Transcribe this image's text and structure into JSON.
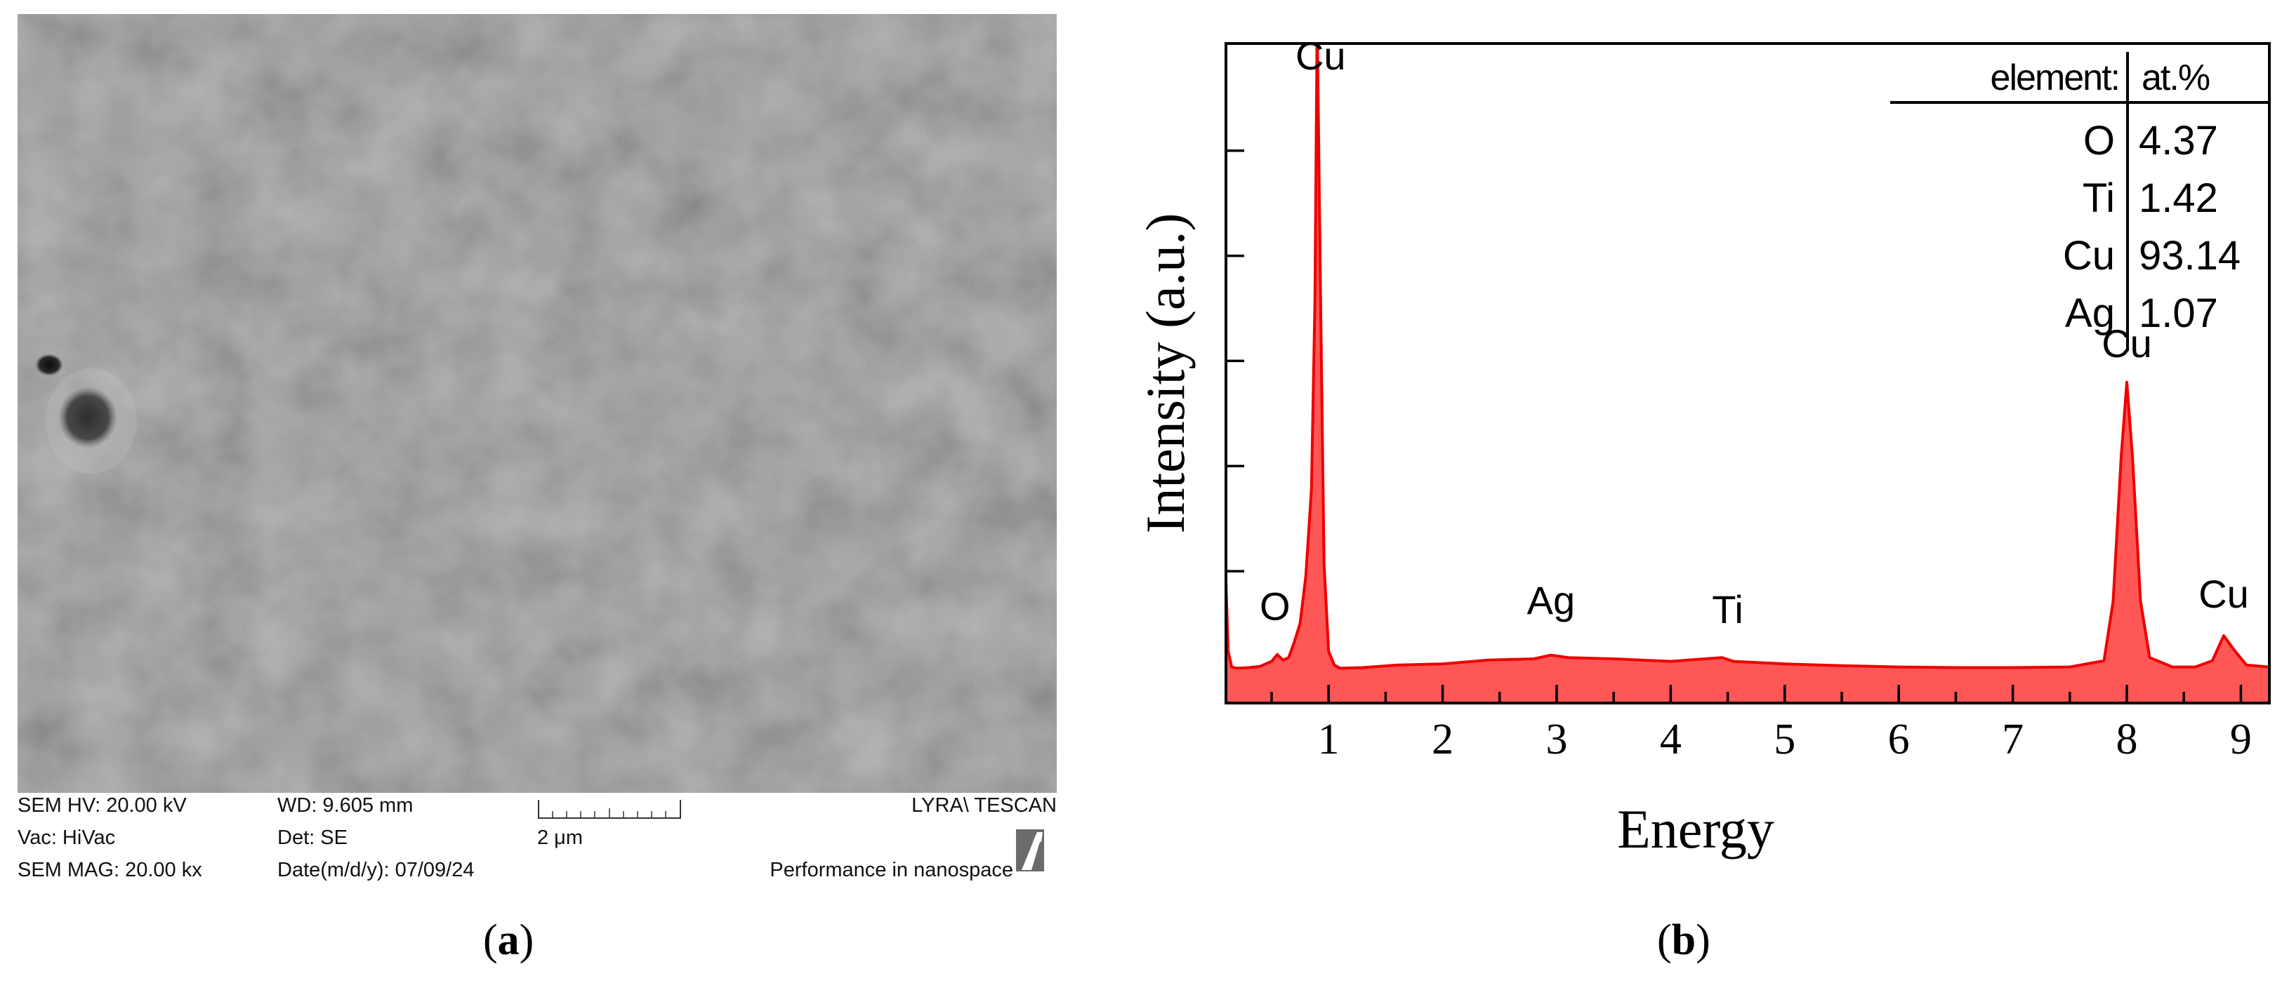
{
  "figure": {
    "panel_a_label": {
      "open": "(",
      "letter": "a",
      "close": ")"
    },
    "panel_b_label": {
      "open": "(",
      "letter": "b",
      "close": ")"
    }
  },
  "sem": {
    "hv": "SEM HV: 20.00 kV",
    "vac": "Vac: HiVac",
    "mag": "SEM MAG: 20.00 kx",
    "wd": "WD: 9.605 mm",
    "det": "Det: SE",
    "date": "Date(m/d/y): 07/09/24",
    "scale_label": "2 μm",
    "instrument": "LYRA\\ TESCAN",
    "tagline": "Performance in nanospace",
    "logo_icon": "tescan-logo-icon"
  },
  "chart_data": {
    "type": "area",
    "xlabel": "Energy",
    "ylabel": "Intensity (a.u.)",
    "xlim": [
      0.1,
      9.25
    ],
    "x_ticks": [
      1,
      2,
      3,
      4,
      5,
      6,
      7,
      8,
      9
    ],
    "x_tick_labels": [
      "1",
      "2",
      "3",
      "4",
      "5",
      "6",
      "7",
      "8",
      "9"
    ],
    "ylim": [
      0,
      100
    ],
    "y_ticks": [
      20,
      40,
      60,
      80,
      100
    ],
    "y_tick_labels_shown": false,
    "fill_color": "#ff4444",
    "line_color": "#ee0000",
    "series": [
      {
        "x": [
          0.1,
          0.12,
          0.15,
          0.2,
          0.3,
          0.4,
          0.5,
          0.55,
          0.6,
          0.65,
          0.7,
          0.75,
          0.8,
          0.85,
          0.88,
          0.9,
          0.93,
          0.96,
          1.0,
          1.05,
          1.1,
          1.3,
          1.6,
          2.0,
          2.4,
          2.8,
          2.95,
          3.1,
          3.5,
          4.0,
          4.45,
          4.55,
          5.0,
          5.5,
          6.0,
          6.5,
          7.0,
          7.5,
          7.8,
          7.88,
          7.95,
          8.0,
          8.05,
          8.12,
          8.2,
          8.4,
          8.6,
          8.75,
          8.85,
          8.95,
          9.05,
          9.25
        ],
        "y": [
          15,
          4,
          1.5,
          1.3,
          1.4,
          1.6,
          2.4,
          3.5,
          2.6,
          3.0,
          5.5,
          8.5,
          16,
          30,
          60,
          105,
          60,
          18,
          4,
          1.8,
          1.3,
          1.4,
          1.8,
          2.0,
          2.6,
          2.8,
          3.4,
          3.0,
          2.8,
          2.4,
          3.0,
          2.4,
          2.0,
          1.7,
          1.5,
          1.4,
          1.4,
          1.5,
          2.5,
          12,
          35,
          47,
          35,
          12,
          3,
          1.5,
          1.5,
          2.5,
          6.5,
          4,
          1.8,
          1.5
        ]
      }
    ],
    "peak_labels": [
      {
        "text": "Cu",
        "x": 0.93,
        "y": 97
      },
      {
        "text": "O",
        "x": 0.53,
        "y": 9
      },
      {
        "text": "Ag",
        "x": 2.95,
        "y": 10
      },
      {
        "text": "Ti",
        "x": 4.5,
        "y": 8.5
      },
      {
        "text": "Cu",
        "x": 8.0,
        "y": 51
      },
      {
        "text": "Cu",
        "x": 8.85,
        "y": 11
      }
    ],
    "composition_table": {
      "headers": [
        "element:",
        "at.%"
      ],
      "rows": [
        {
          "element": "O",
          "value": "4.37"
        },
        {
          "element": "Ti",
          "value": "1.42"
        },
        {
          "element": "Cu",
          "value": "93.14"
        },
        {
          "element": "Ag",
          "value": "1.07"
        }
      ]
    }
  }
}
